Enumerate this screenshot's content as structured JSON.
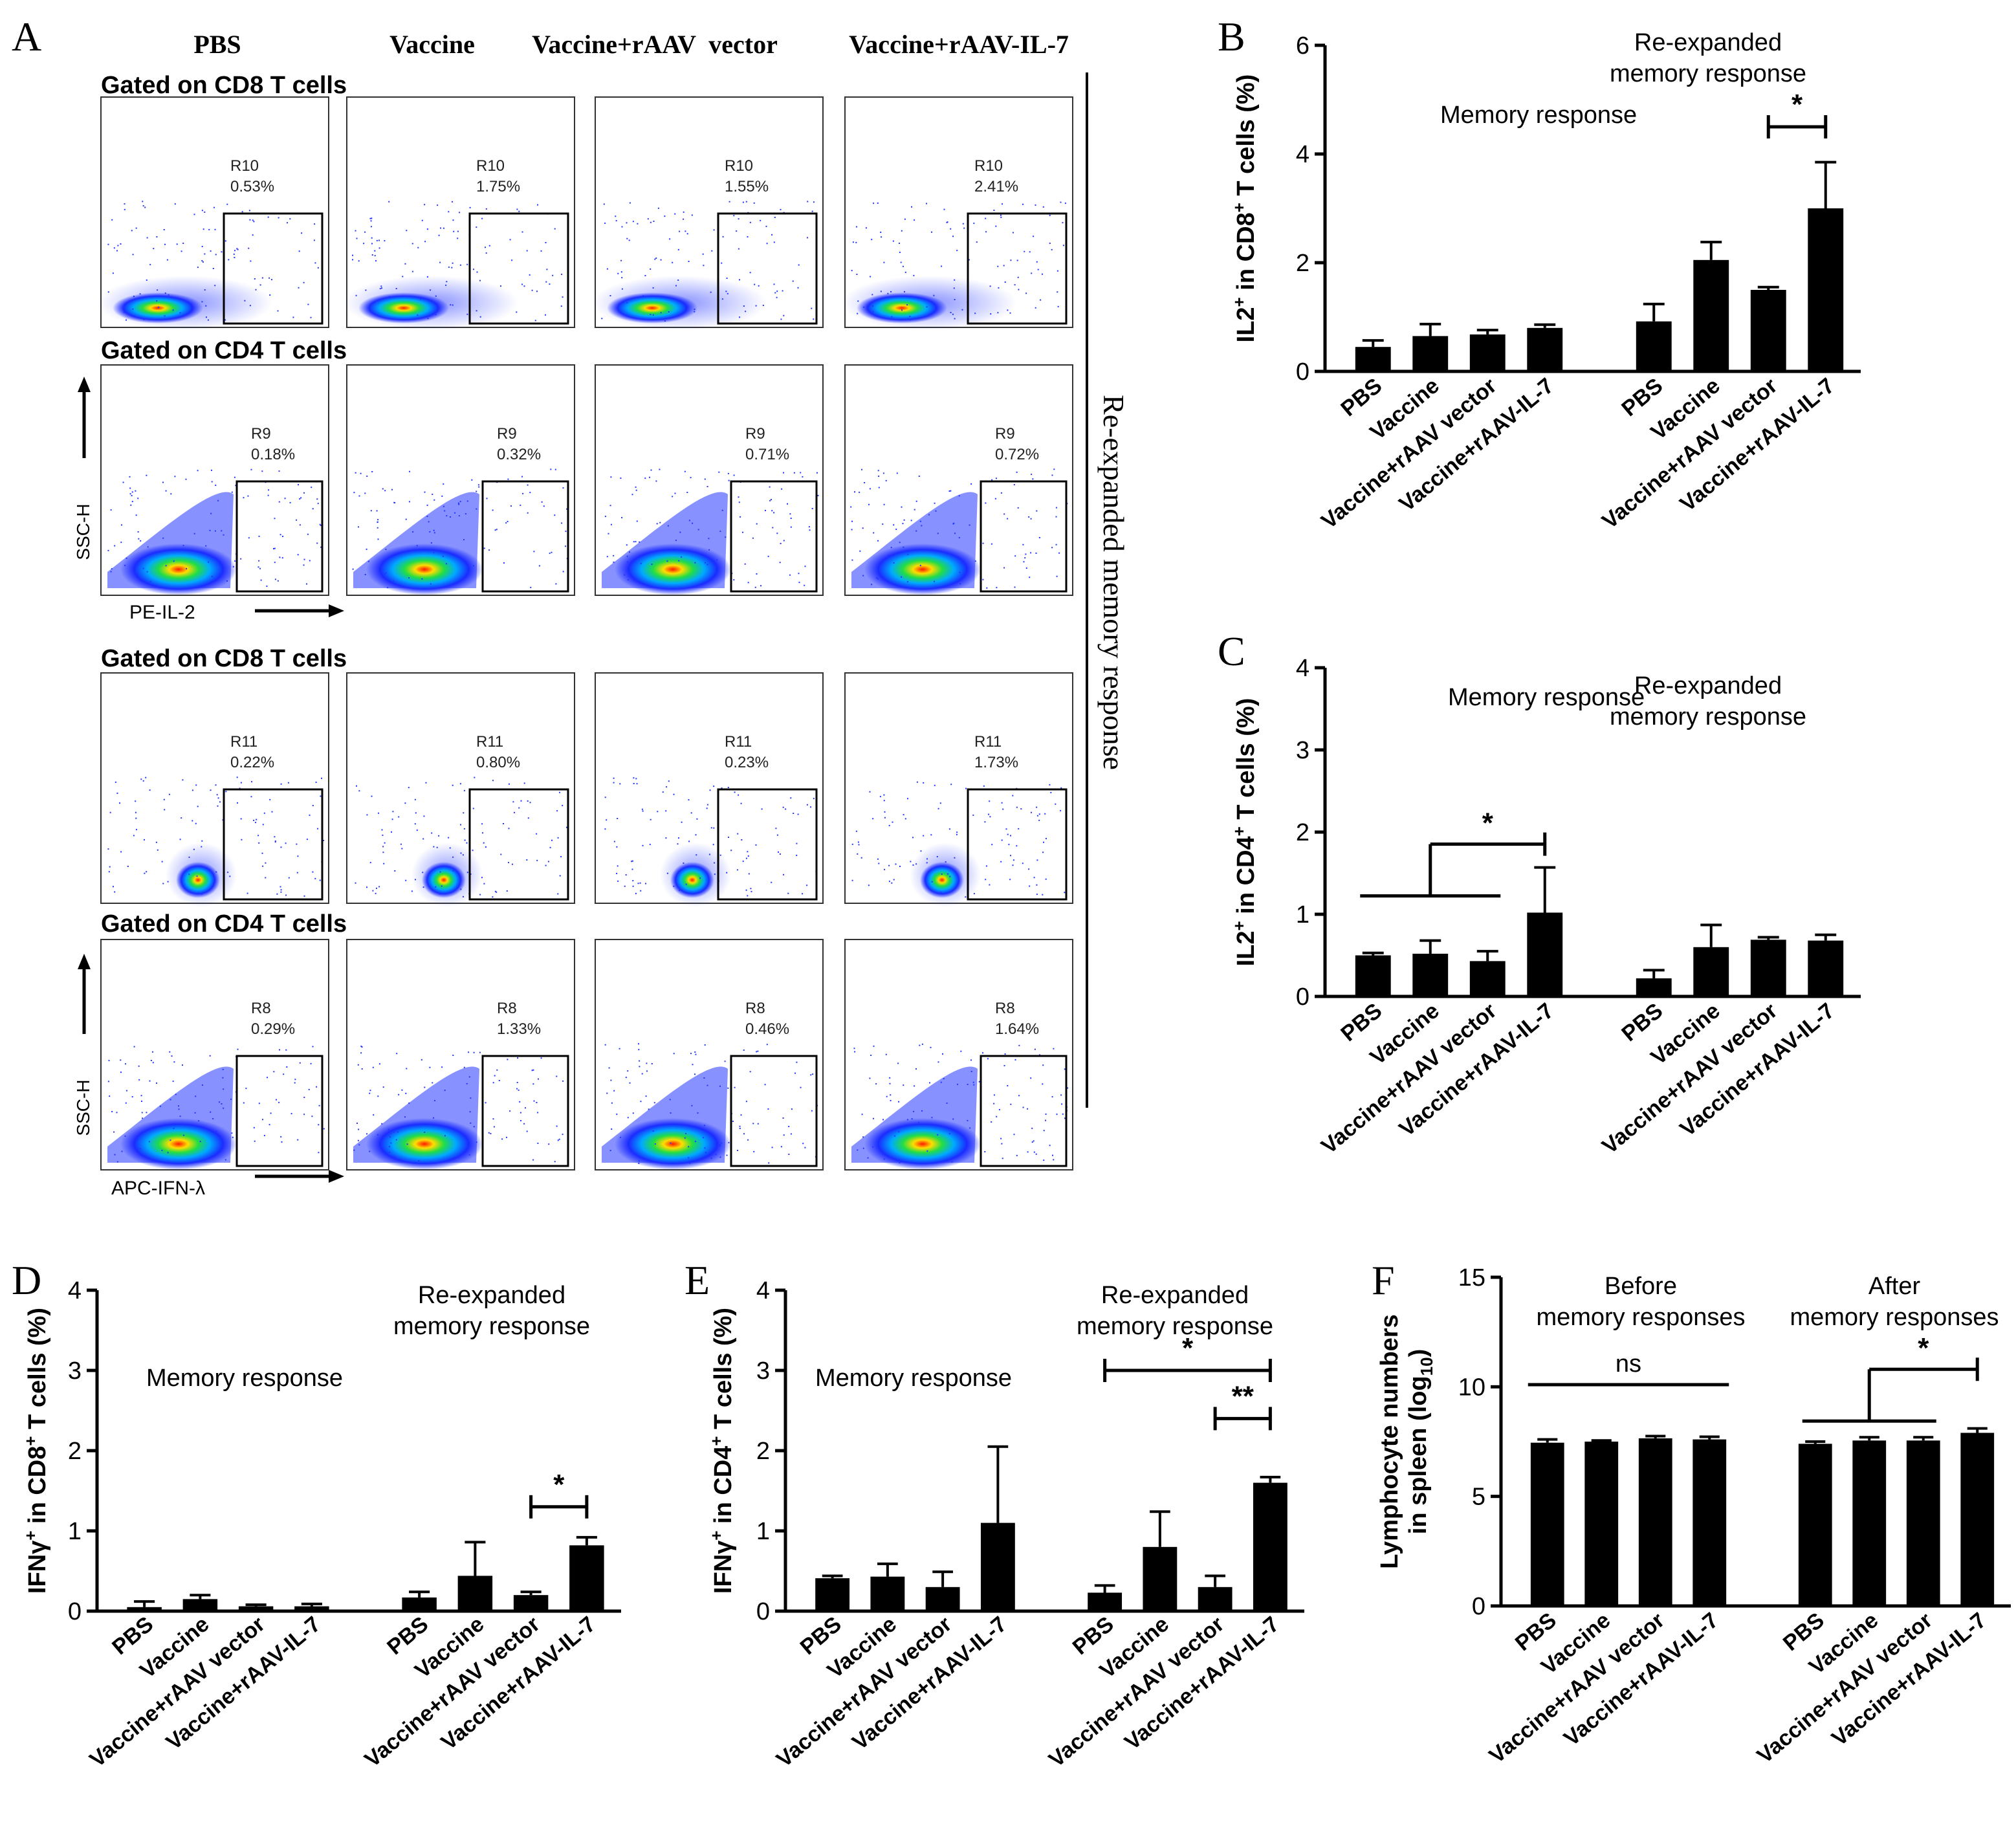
{
  "panel_letters": [
    "A",
    "B",
    "C",
    "D",
    "E",
    "F"
  ],
  "flow": {
    "columns": [
      "PBS",
      "Vaccine",
      "Vaccine+rAAV  vector",
      "Vaccine+rAAV-IL-7"
    ],
    "side_label": "Re-expanded memory response",
    "axis": {
      "y": "SSC-H",
      "x_il2": "PE-IL-2",
      "x_ifn": "APC-IFN-λ"
    },
    "rows": [
      {
        "gate": "Gated on CD8 T cells",
        "region": "R10",
        "values": [
          "0.53%",
          "1.75%",
          "1.55%",
          "2.41%"
        ]
      },
      {
        "gate": "Gated on CD4 T cells",
        "region": "R9",
        "values": [
          "0.18%",
          "0.32%",
          "0.71%",
          "0.72%"
        ]
      },
      {
        "gate": "Gated on CD8 T cells",
        "region": "R11",
        "values": [
          "0.22%",
          "0.80%",
          "0.23%",
          "1.73%"
        ]
      },
      {
        "gate": "Gated on CD4 T cells",
        "region": "R8",
        "values": [
          "0.29%",
          "1.33%",
          "0.46%",
          "1.64%"
        ]
      }
    ]
  },
  "chart_data": [
    {
      "panel": "B",
      "type": "bar",
      "ylabel_parts": [
        "IL2",
        "+",
        " in CD8",
        "+",
        " T cells (%)"
      ],
      "ylim": [
        0,
        6
      ],
      "yticks": [
        0,
        2,
        4,
        6
      ],
      "group_labels": [
        "Memory response",
        "Re-expanded\nmemory response"
      ],
      "categories": [
        "PBS",
        "Vaccine",
        "Vaccine+rAAV vector",
        "Vaccine+rAAV-IL-7",
        "PBS",
        "Vaccine",
        "Vaccine+rAAV vector",
        "Vaccine+rAAV-IL-7"
      ],
      "values": [
        0.45,
        0.65,
        0.68,
        0.8,
        0.92,
        2.05,
        1.5,
        3.0
      ],
      "errors": [
        0.12,
        0.22,
        0.08,
        0.06,
        0.32,
        0.33,
        0.05,
        0.85
      ],
      "significance": [
        {
          "label": "*",
          "from": 6,
          "to": 7
        }
      ]
    },
    {
      "panel": "C",
      "type": "bar",
      "ylabel_parts": [
        "IL2",
        "+",
        " in CD4",
        "+",
        " T cells (%)"
      ],
      "ylim": [
        0,
        4
      ],
      "yticks": [
        0,
        1,
        2,
        3,
        4
      ],
      "group_labels": [
        "Memory response",
        "Re-expanded\nmemory response"
      ],
      "categories": [
        "PBS",
        "Vaccine",
        "Vaccine+rAAV vector",
        "Vaccine+rAAV-IL-7",
        "PBS",
        "Vaccine",
        "Vaccine+rAAV vector",
        "Vaccine+rAAV-IL-7"
      ],
      "values": [
        0.5,
        0.52,
        0.43,
        1.02,
        0.22,
        0.6,
        0.69,
        0.68
      ],
      "errors": [
        0.03,
        0.16,
        0.12,
        0.55,
        0.1,
        0.27,
        0.03,
        0.07
      ],
      "significance": [
        {
          "label": "*",
          "from": 1,
          "to": 3,
          "group_from": [
            0,
            2
          ]
        }
      ]
    },
    {
      "panel": "D",
      "type": "bar",
      "ylabel_parts": [
        "IFNγ",
        "+",
        " in CD8",
        "+",
        " T cells (%)"
      ],
      "ylim": [
        0,
        4
      ],
      "yticks": [
        0,
        1,
        2,
        3,
        4
      ],
      "group_labels": [
        "Memory response",
        "Re-expanded\nmemory response"
      ],
      "categories": [
        "PBS",
        "Vaccine",
        "Vaccine+rAAV vector",
        "Vaccine+rAAV-IL-7",
        "PBS",
        "Vaccine",
        "Vaccine+rAAV vector",
        "Vaccine+rAAV-IL-7"
      ],
      "values": [
        0.05,
        0.15,
        0.06,
        0.06,
        0.17,
        0.44,
        0.2,
        0.82
      ],
      "errors": [
        0.07,
        0.05,
        0.02,
        0.03,
        0.07,
        0.42,
        0.04,
        0.1
      ],
      "significance": [
        {
          "label": "*",
          "from": 6,
          "to": 7
        }
      ]
    },
    {
      "panel": "E",
      "type": "bar",
      "ylabel_parts": [
        "IFNγ",
        "+",
        " in CD4",
        "+",
        " T cells (%)"
      ],
      "ylim": [
        0,
        4
      ],
      "yticks": [
        0,
        1,
        2,
        3,
        4
      ],
      "group_labels": [
        "Memory response",
        "Re-expanded\nmemory response"
      ],
      "categories": [
        "PBS",
        "Vaccine",
        "Vaccine+rAAV vector",
        "Vaccine+rAAV-IL-7",
        "PBS",
        "Vaccine",
        "Vaccine+rAAV vector",
        "Vaccine+rAAV-IL-7"
      ],
      "values": [
        0.41,
        0.43,
        0.3,
        1.1,
        0.23,
        0.8,
        0.3,
        1.6
      ],
      "errors": [
        0.03,
        0.16,
        0.19,
        0.95,
        0.09,
        0.44,
        0.14,
        0.07
      ],
      "significance": [
        {
          "label": "*",
          "from": 4,
          "to": 7
        },
        {
          "label": "**",
          "from": 6,
          "to": 7
        }
      ]
    },
    {
      "panel": "F",
      "type": "bar",
      "ylabel_parts": [
        "Lymphocyte numbers",
        "in spleen (log",
        "10",
        ")"
      ],
      "ylim": [
        0,
        15
      ],
      "yticks": [
        0,
        5,
        10,
        15
      ],
      "group_labels": [
        "Before\nmemory responses",
        "After\nmemory responses"
      ],
      "categories": [
        "PBS",
        "Vaccine",
        "Vaccine+rAAV vector",
        "Vaccine+rAAV-IL-7",
        "PBS",
        "Vaccine",
        "Vaccine+rAAV vector",
        "Vaccine+rAAV-IL-7"
      ],
      "values": [
        7.45,
        7.5,
        7.65,
        7.6,
        7.4,
        7.55,
        7.55,
        7.9
      ],
      "errors": [
        0.15,
        0.05,
        0.1,
        0.12,
        0.1,
        0.15,
        0.15,
        0.2
      ],
      "significance": [
        {
          "label": "ns",
          "from": 0,
          "to": 3
        },
        {
          "label": "*",
          "from": 5,
          "to": 7,
          "group_from": [
            4,
            6
          ]
        }
      ]
    }
  ]
}
